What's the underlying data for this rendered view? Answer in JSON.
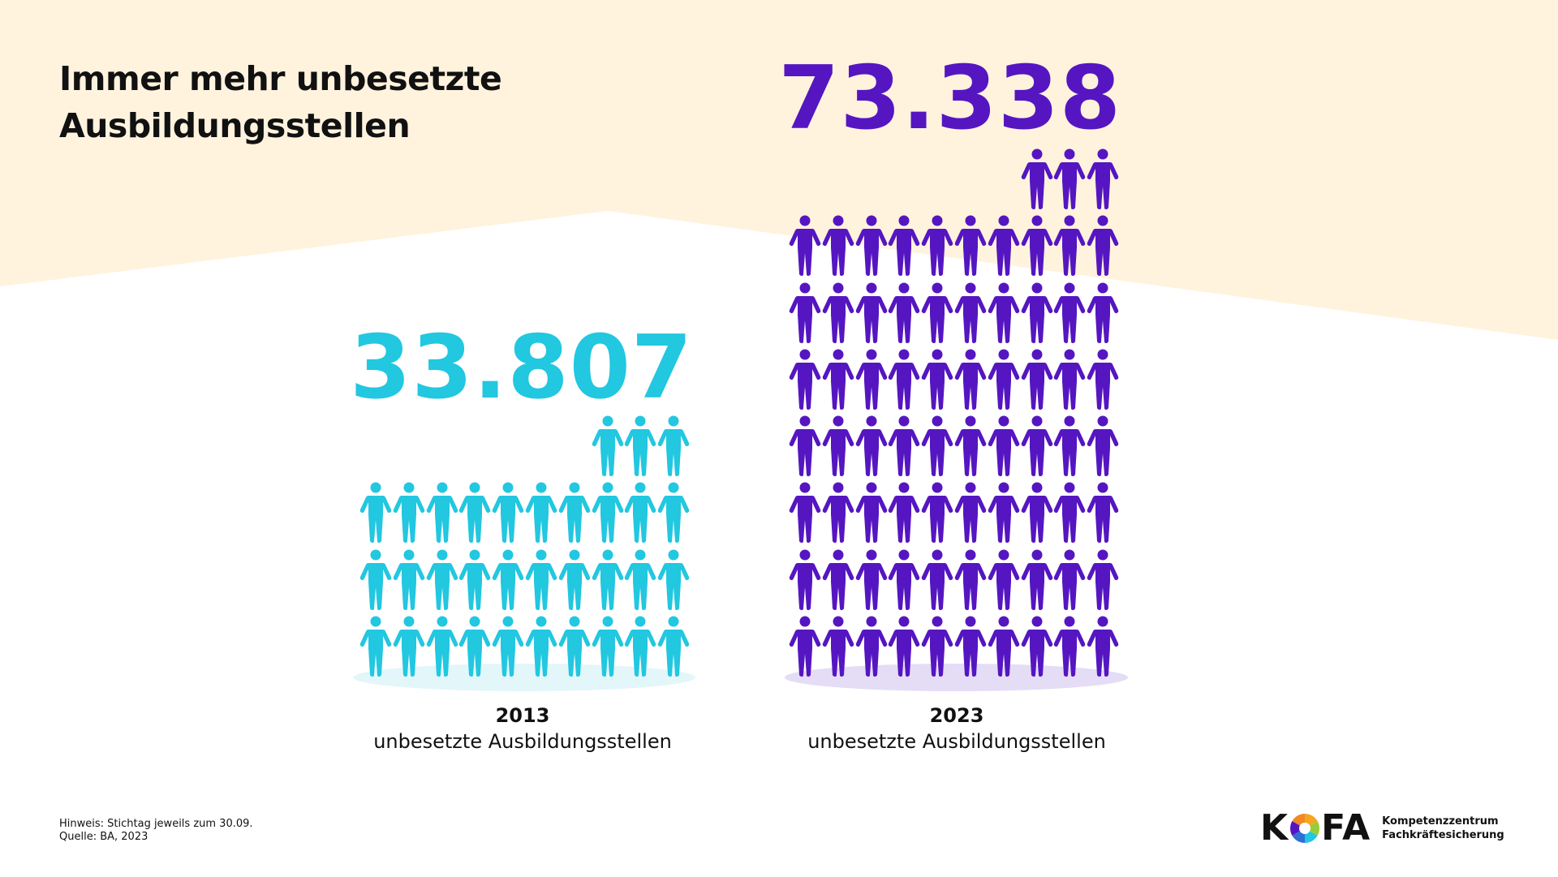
{
  "title": {
    "line1": "Immer mehr unbesetzte",
    "line2": "Ausbildungsstellen"
  },
  "colors": {
    "background_band": "#FFF3DE",
    "series_2013": "#22C7E0",
    "series_2013_shadow": "#E3F6FA",
    "series_2023": "#5516C1",
    "series_2023_shadow": "#E5DCF6",
    "text": "#111111"
  },
  "groups": [
    {
      "year": "2013",
      "value_label": "33.807",
      "description": "unbesetzte Ausbildungsstellen",
      "icon": "person-icon",
      "icon_count": 33
    },
    {
      "year": "2023",
      "value_label": "73.338",
      "description": "unbesetzte Ausbildungsstellen",
      "icon": "person-icon",
      "icon_count": 73
    }
  ],
  "footer": {
    "note": "Hinweis: Stichtag jeweils zum 30.09.",
    "source": "Quelle: BA, 2023"
  },
  "logo": {
    "word_left": "K",
    "word_right": "FA",
    "line1": "Kompetenzzentrum",
    "line2": "Fachkräftesicherung"
  },
  "chart_data": {
    "type": "pictogram",
    "title": "Immer mehr unbesetzte Ausbildungsstellen",
    "categories": [
      "2013",
      "2023"
    ],
    "values": [
      33807,
      73338
    ],
    "value_labels": [
      "33.807",
      "73.338"
    ],
    "unit": "unbesetzte Ausbildungsstellen",
    "icon_unit": "1 Person ≈ 1.000 Stellen",
    "icons_per_category": [
      33,
      73
    ],
    "xlabel": "",
    "ylabel": "",
    "notes": [
      "Hinweis: Stichtag jeweils zum 30.09.",
      "Quelle: BA, 2023"
    ]
  }
}
